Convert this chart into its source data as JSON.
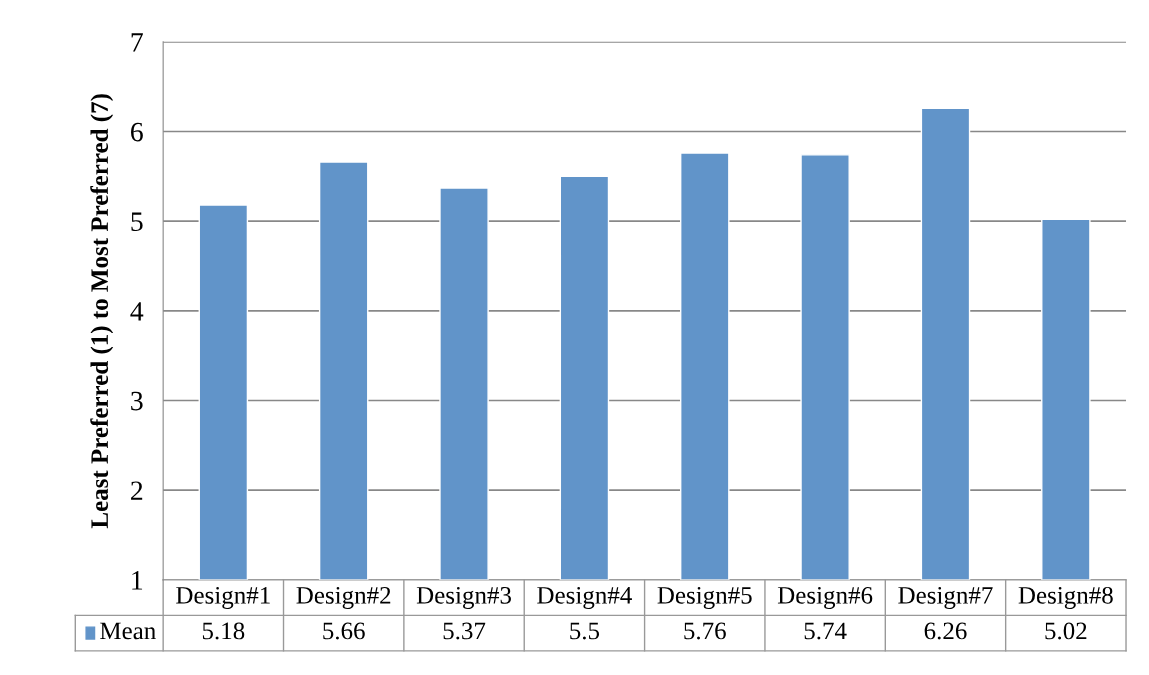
{
  "chart_data": {
    "type": "bar",
    "ylabel": "Least Preferred (1) to Most Preferred (7)",
    "categories": [
      "Design#1",
      "Design#2",
      "Design#3",
      "Design#4",
      "Design#5",
      "Design#6",
      "Design#7",
      "Design#8"
    ],
    "series": [
      {
        "name": "Mean",
        "color": "#6194c9",
        "values": [
          5.18,
          5.66,
          5.37,
          5.5,
          5.76,
          5.74,
          6.26,
          5.02
        ]
      }
    ],
    "ylim": [
      1,
      7
    ],
    "yticks": [
      1,
      2,
      3,
      4,
      5,
      6,
      7
    ],
    "grid": "y",
    "legend": "bottom",
    "data_labels": true
  }
}
